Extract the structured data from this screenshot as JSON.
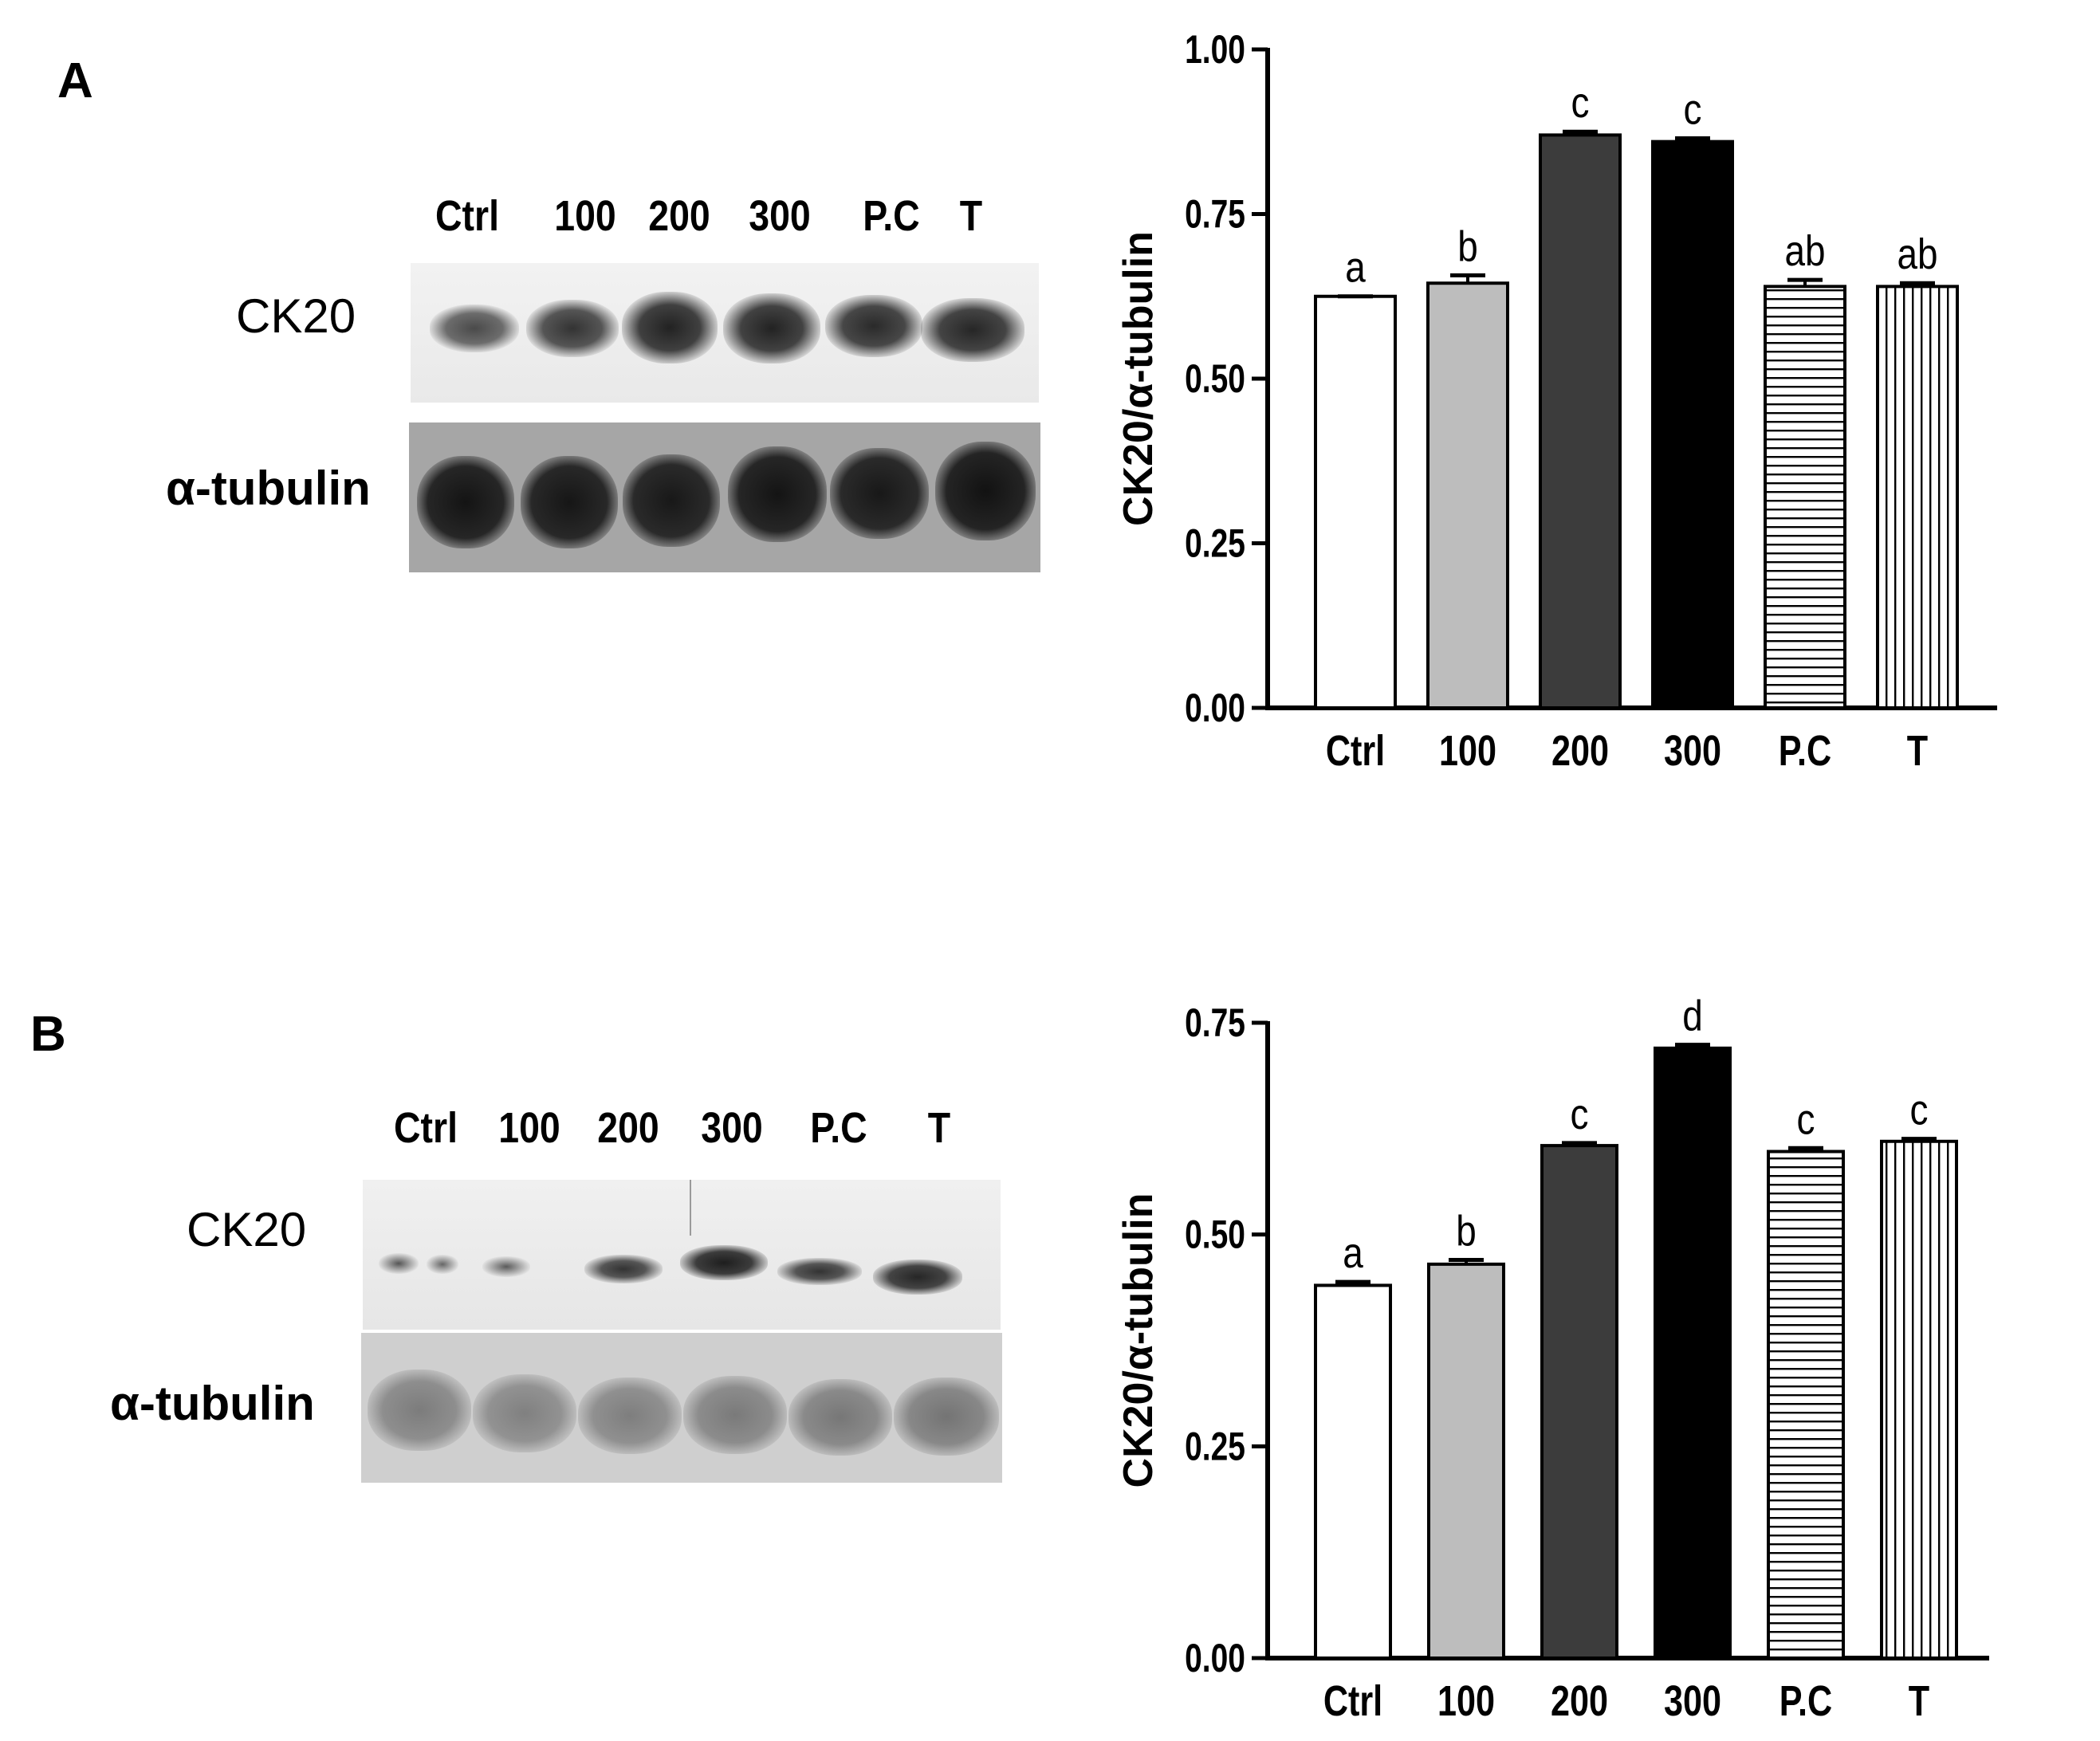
{
  "panels": [
    {
      "id": "A",
      "label": "A",
      "blot": {
        "lanes": [
          "Ctrl",
          "100",
          "200",
          "300",
          "P.C",
          "T"
        ],
        "rows": [
          {
            "label": "CK20"
          },
          {
            "label": "α-tubulin"
          }
        ]
      }
    },
    {
      "id": "B",
      "label": "B",
      "blot": {
        "lanes": [
          "Ctrl",
          "100",
          "200",
          "300",
          "P.C",
          "T"
        ],
        "rows": [
          {
            "label": "CK20"
          },
          {
            "label": "α-tubulin"
          }
        ]
      }
    }
  ],
  "chart_data": [
    {
      "type": "bar",
      "panel": "A",
      "categories": [
        "Ctrl",
        "100",
        "200",
        "300",
        "P.C",
        "T"
      ],
      "values": [
        0.625,
        0.645,
        0.87,
        0.86,
        0.64,
        0.64
      ],
      "errors": [
        0.0,
        0.012,
        0.005,
        0.005,
        0.01,
        0.005
      ],
      "letters": [
        "a",
        "b",
        "c",
        "c",
        "ab",
        "ab"
      ],
      "fills": [
        "white",
        "lightgray",
        "darkgray",
        "black",
        "hlines",
        "vlines"
      ],
      "ylabel": "CK20/α-tubulin",
      "xlabel": "",
      "ylim": [
        0,
        1.0
      ],
      "yticks": [
        "0.00",
        "0.25",
        "0.50",
        "0.75",
        "1.00"
      ],
      "colors": {
        "lightgray": "#bdbdbd",
        "darkgray": "#3c3c3c",
        "black": "#000000"
      }
    },
    {
      "type": "bar",
      "panel": "B",
      "categories": [
        "Ctrl",
        "100",
        "200",
        "300",
        "P.C",
        "T"
      ],
      "values": [
        0.44,
        0.465,
        0.605,
        0.72,
        0.598,
        0.61
      ],
      "errors": [
        0.004,
        0.005,
        0.003,
        0.004,
        0.004,
        0.003
      ],
      "letters": [
        "a",
        "b",
        "c",
        "d",
        "c",
        "c"
      ],
      "fills": [
        "white",
        "lightgray",
        "darkgray",
        "black",
        "hlines",
        "vlines"
      ],
      "ylabel": "CK20/α-tubulin",
      "xlabel": "",
      "ylim": [
        0,
        0.75
      ],
      "yticks": [
        "0.00",
        "0.25",
        "0.50",
        "0.75"
      ],
      "colors": {
        "lightgray": "#bdbdbd",
        "darkgray": "#3c3c3c",
        "black": "#000000"
      }
    }
  ]
}
